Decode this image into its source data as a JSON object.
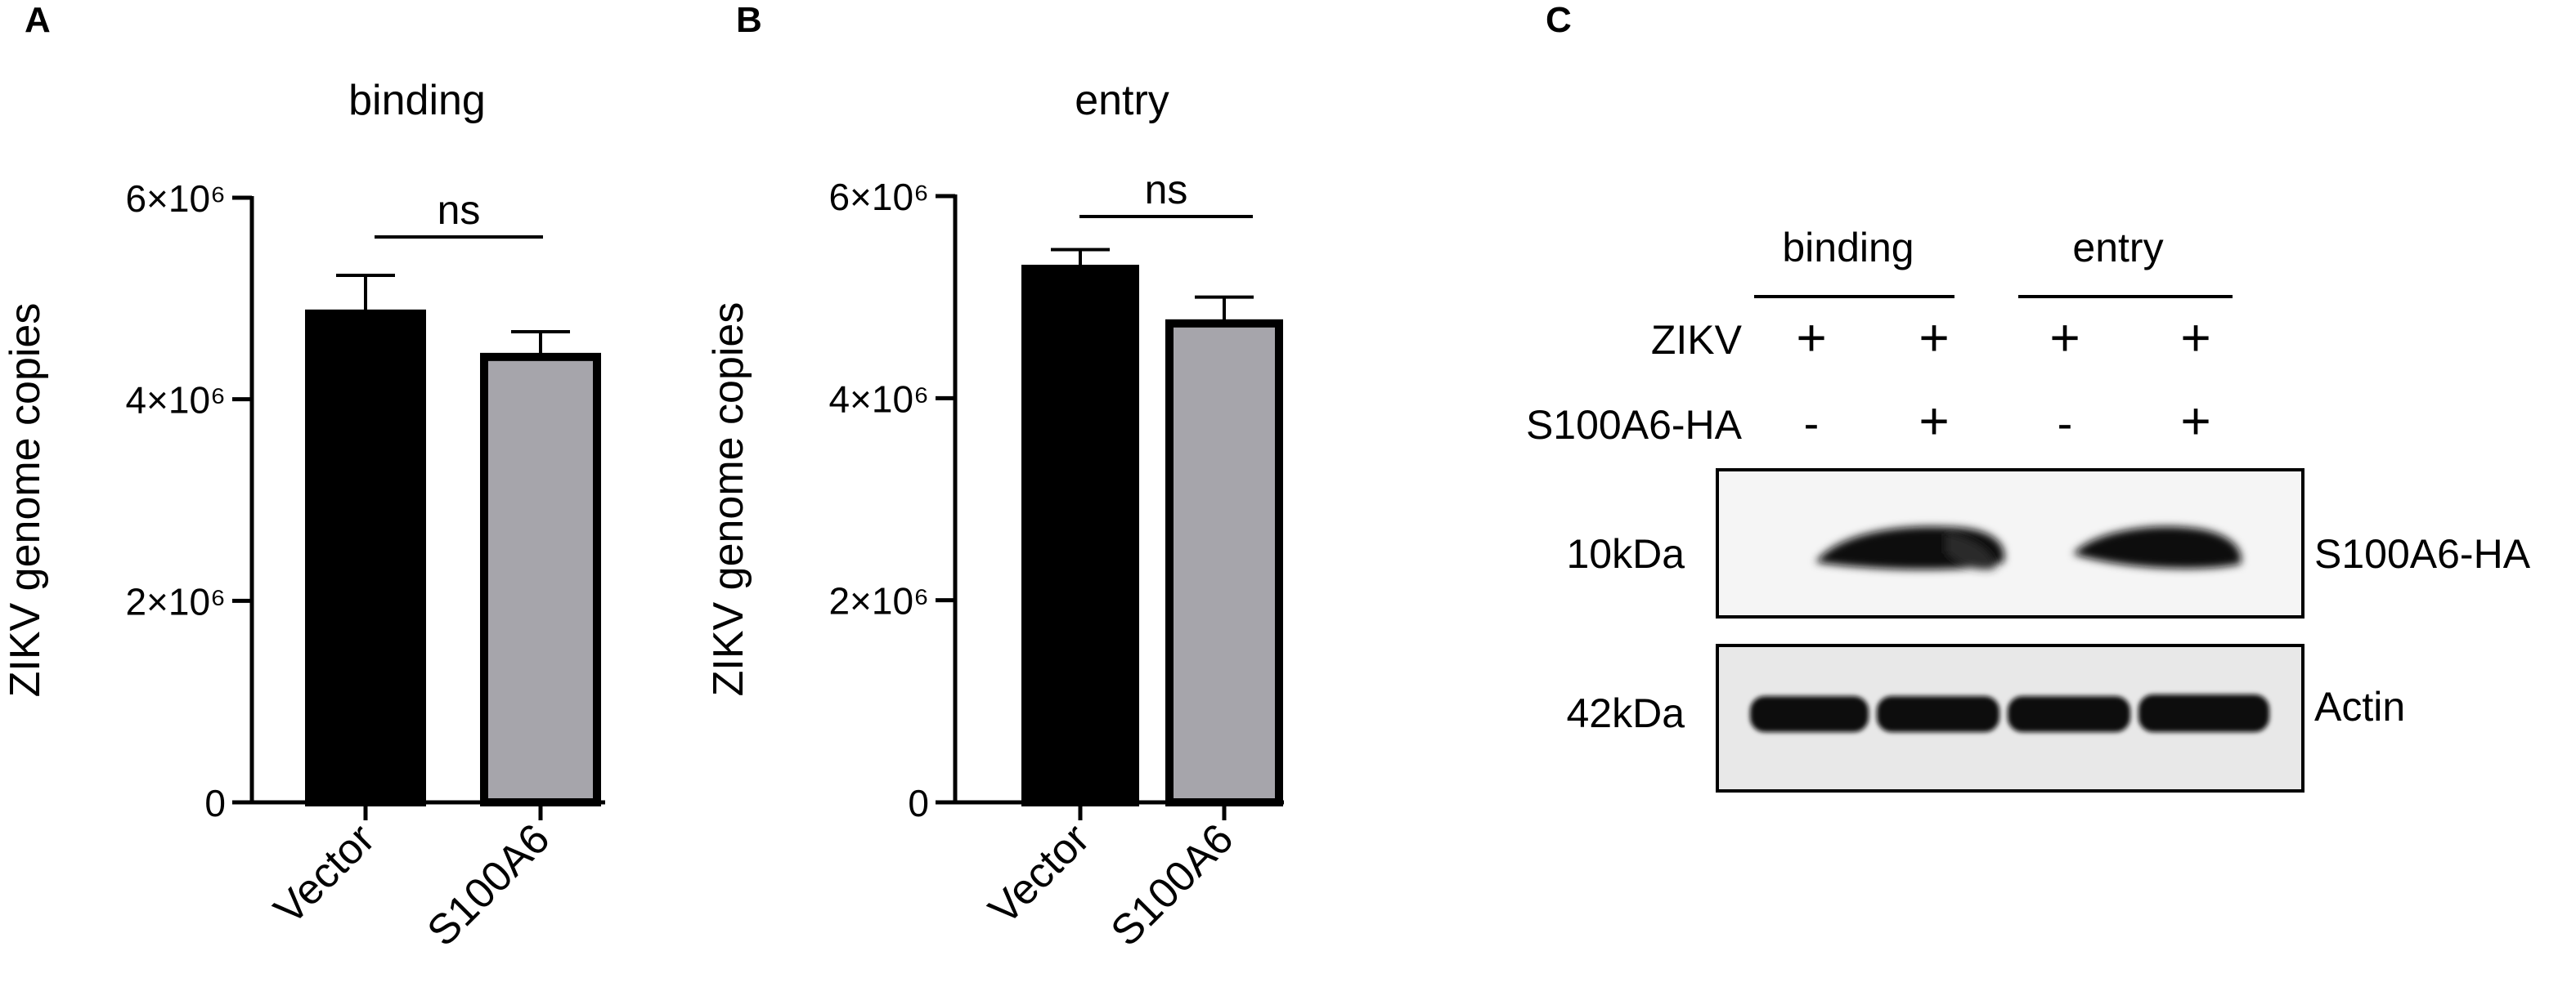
{
  "panels": {
    "a": {
      "letter": "A"
    },
    "b": {
      "letter": "B"
    },
    "c": {
      "letter": "C"
    }
  },
  "chart_data": [
    {
      "panel": "A",
      "type": "bar",
      "title": "binding",
      "ylabel": "ZIKV genome copies",
      "categories": [
        "Vector",
        "S100A6"
      ],
      "values": [
        4850000,
        4420000
      ],
      "errors": [
        380000,
        250000
      ],
      "bar_colors": [
        "#000000",
        "#a6a5ab"
      ],
      "ylim": [
        0,
        6000000
      ],
      "yticks": [
        0,
        2000000,
        4000000,
        6000000
      ],
      "ytick_labels": [
        "0",
        "2×10⁶",
        "4×10⁶",
        "6×10⁶"
      ],
      "annotation": "ns"
    },
    {
      "panel": "B",
      "type": "bar",
      "title": "entry",
      "ylabel": "ZIKV genome copies",
      "categories": [
        "Vector",
        "S100A6"
      ],
      "values": [
        5280000,
        4740000
      ],
      "errors": [
        190000,
        260000
      ],
      "bar_colors": [
        "#000000",
        "#a6a5ab"
      ],
      "ylim": [
        0,
        6000000
      ],
      "yticks": [
        0,
        2000000,
        4000000,
        6000000
      ],
      "ytick_labels": [
        "0",
        "2×10⁶",
        "4×10⁶",
        "6×10⁶"
      ],
      "annotation": "ns"
    }
  ],
  "blot": {
    "groups": [
      "binding",
      "entry"
    ],
    "row_labels": [
      "ZIKV",
      "S100A6-HA"
    ],
    "zikv_signs": [
      "+",
      "+",
      "+",
      "+"
    ],
    "s100a6_signs": [
      "-",
      "+",
      "-",
      "+"
    ],
    "markers": [
      "10kDa",
      "42kDa"
    ],
    "band_names": [
      "S100A6-HA",
      "Actin"
    ]
  }
}
